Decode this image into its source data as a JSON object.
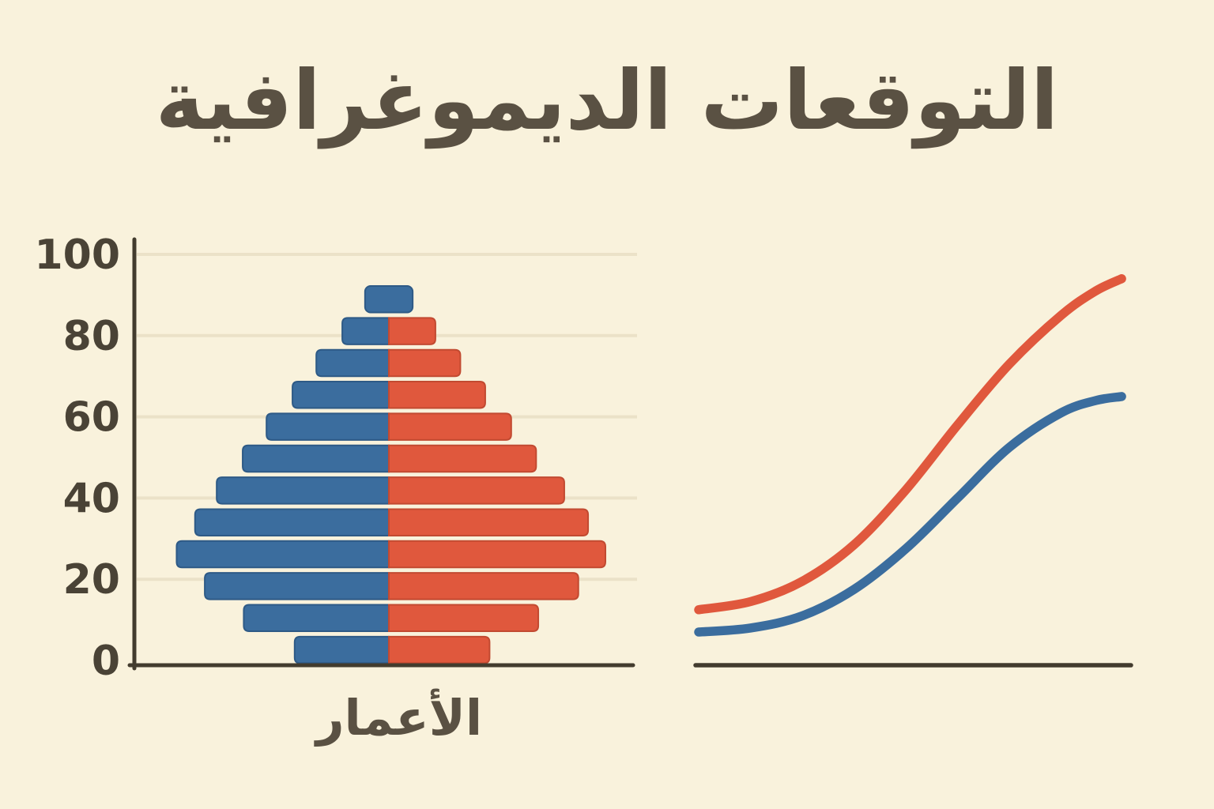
{
  "page": {
    "title": "التوقعات الديموغرافية"
  },
  "colors": {
    "background": "#f9f2dc",
    "title_text": "#5a5143",
    "axis": "#433c2e",
    "grid_line": "#ebe2c8",
    "tick_label": "#4a4336",
    "male_blue": "#3b6d9e",
    "male_blue_edge": "#2e5a86",
    "female_red": "#e0583d",
    "female_red_edge": "#c24a31"
  },
  "chart_data": [
    {
      "id": "population-pyramid",
      "type": "bar",
      "subtype": "population-pyramid",
      "title": "",
      "xlabel": "الأعمار",
      "ylabel": "",
      "y_ticks": [
        0,
        20,
        40,
        60,
        80,
        100
      ],
      "ylim": [
        0,
        100
      ],
      "grid": true,
      "legend": false,
      "value_units": "relative half-width, widest bar = 100",
      "series": [
        {
          "name": "left-half-blue",
          "color": "#3b6d9e"
        },
        {
          "name": "right-half-red",
          "color": "#e0583d"
        }
      ],
      "rows_top_to_bottom": [
        {
          "left": 11,
          "right": 11,
          "style": "single-blue-cap"
        },
        {
          "left": 21.5,
          "right": 21.5
        },
        {
          "left": 33.5,
          "right": 33
        },
        {
          "left": 44.5,
          "right": 44.5
        },
        {
          "left": 56.5,
          "right": 56.5
        },
        {
          "left": 67.5,
          "right": 68
        },
        {
          "left": 79.5,
          "right": 81
        },
        {
          "left": 89.5,
          "right": 92
        },
        {
          "left": 98,
          "right": 100
        },
        {
          "left": 85,
          "right": 87.5
        },
        {
          "left": 67,
          "right": 69
        },
        {
          "left": 43.5,
          "right": 46.5
        }
      ]
    },
    {
      "id": "projection-curves",
      "type": "line",
      "title": "",
      "xlabel": "",
      "ylabel": "",
      "grid": false,
      "legend": false,
      "axes": "bottom axis only, no ticks or labels",
      "x_range": [
        0,
        100
      ],
      "ylim": [
        0,
        100
      ],
      "series": [
        {
          "name": "upper-curve-red",
          "color": "#e0583d",
          "points": [
            [
              0,
              12.5
            ],
            [
              12,
              14.5
            ],
            [
              24,
              19.5
            ],
            [
              36,
              28.5
            ],
            [
              48,
              42
            ],
            [
              60,
              58
            ],
            [
              72,
              73
            ],
            [
              84,
              85
            ],
            [
              92,
              91
            ],
            [
              98,
              94
            ]
          ]
        },
        {
          "name": "lower-curve-blue",
          "color": "#3b6d9e",
          "points": [
            [
              0,
              7
            ],
            [
              12,
              8
            ],
            [
              24,
              11
            ],
            [
              36,
              17.5
            ],
            [
              48,
              27.5
            ],
            [
              60,
              40
            ],
            [
              72,
              52.5
            ],
            [
              84,
              61
            ],
            [
              92,
              64
            ],
            [
              98,
              65
            ]
          ]
        }
      ]
    }
  ]
}
